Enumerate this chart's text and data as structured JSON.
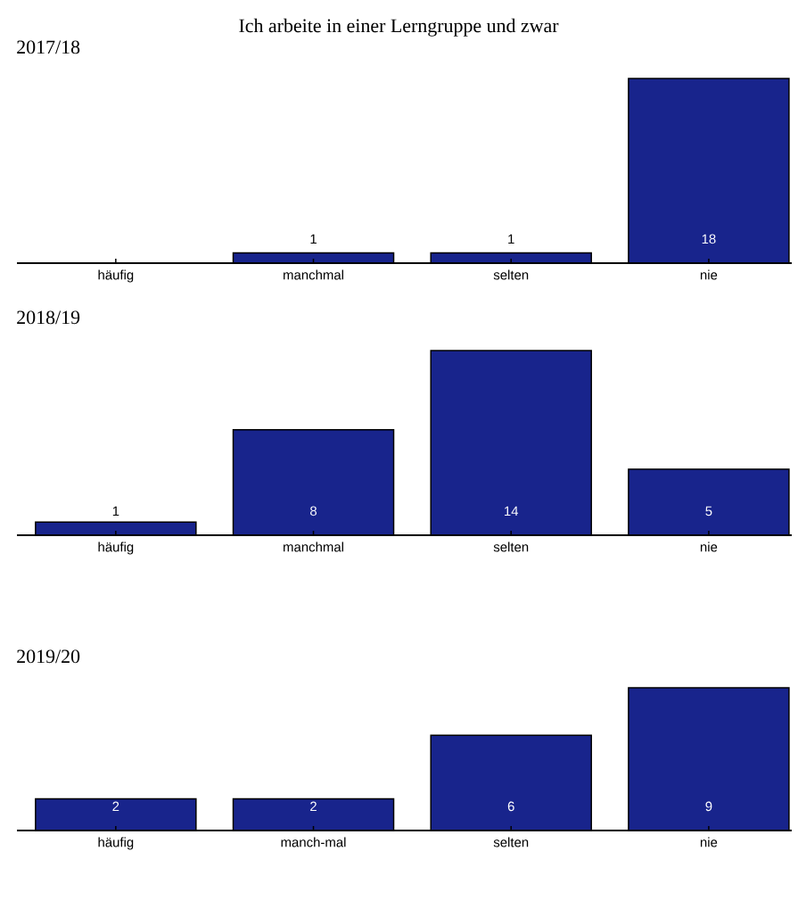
{
  "chart_data": [
    {
      "type": "bar",
      "title": "Ich arbeite in einer Lerngruppe und zwar",
      "subtitle": "2017/18",
      "categories": [
        "häufig",
        "manchmal",
        "selten",
        "nie"
      ],
      "values": [
        0,
        1,
        1,
        18
      ],
      "value_labels": [
        null,
        "1",
        "1",
        "18"
      ],
      "color": "#18248c"
    },
    {
      "type": "bar",
      "title": "2018/19",
      "categories": [
        "häufig",
        "manchmal",
        "selten",
        "nie"
      ],
      "values": [
        1,
        8,
        14,
        5
      ],
      "data_labels": true,
      "color": "#18248c"
    },
    {
      "type": "bar",
      "title": "2019/20",
      "categories": [
        "häufig",
        "manch-mal",
        "selten",
        "nie"
      ],
      "values": [
        2,
        2,
        6,
        9
      ],
      "data_labels": true,
      "color": "#18248c"
    }
  ]
}
